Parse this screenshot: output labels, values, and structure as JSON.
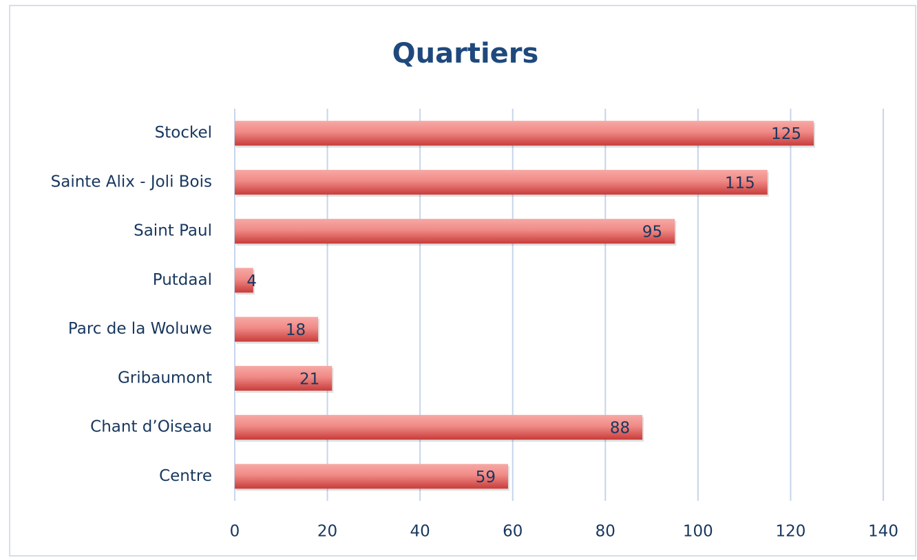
{
  "chart_data": {
    "type": "barh",
    "title": "Quartiers",
    "categories": [
      "Stockel",
      "Sainte Alix - Joli Bois",
      "Saint Paul",
      "Putdaal",
      "Parc de la Woluwe",
      "Gribaumont",
      "Chant d’Oiseau",
      "Centre"
    ],
    "values": [
      125,
      115,
      95,
      4,
      18,
      21,
      88,
      59
    ],
    "color": "#d9524f",
    "xlim": [
      0,
      140
    ],
    "xticks": [
      0,
      20,
      40,
      60,
      80,
      100,
      120,
      140
    ],
    "grid": true
  }
}
